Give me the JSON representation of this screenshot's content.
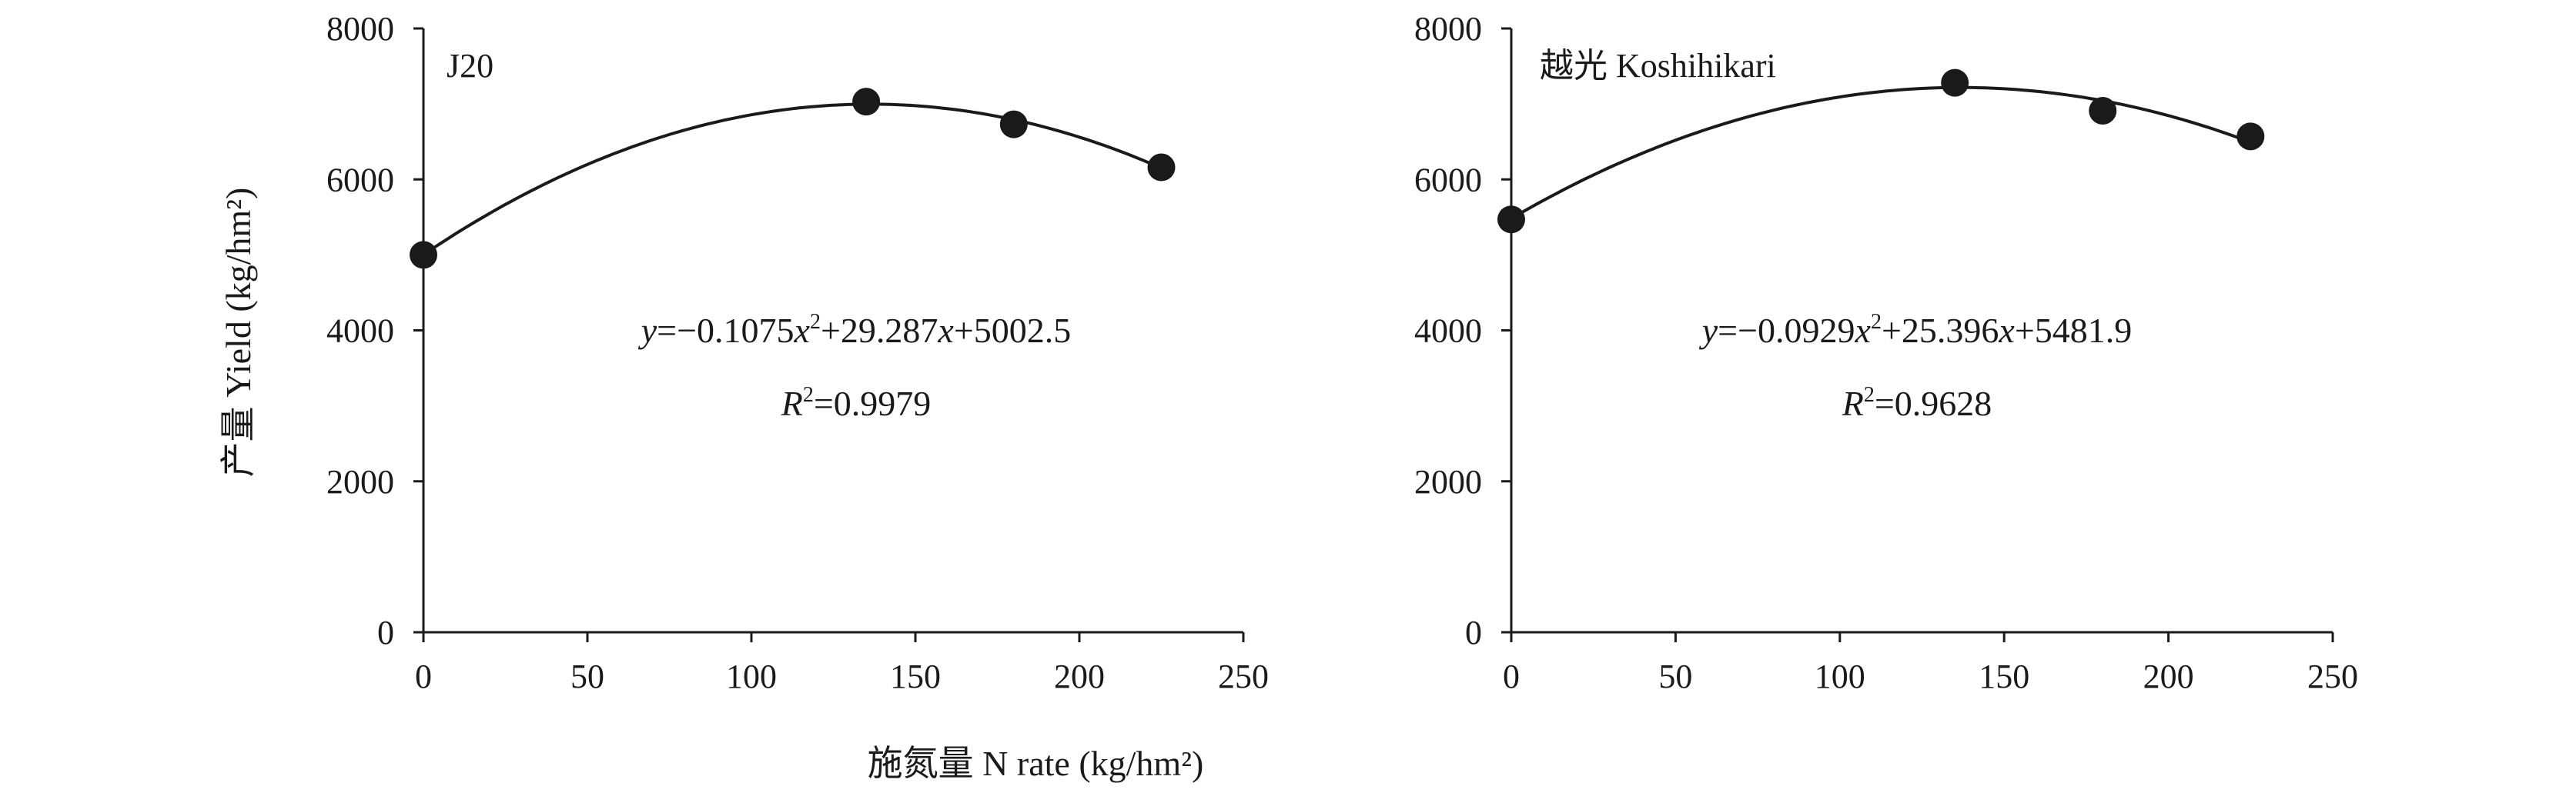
{
  "figure": {
    "y_axis_title": "产量 Yield (kg/hm²)",
    "x_axis_title": "施氮量 N rate (kg/hm²)"
  },
  "chart_data": [
    {
      "type": "scatter",
      "panel_label": "J20",
      "x": [
        0,
        135,
        180,
        225
      ],
      "y": [
        5000,
        7030,
        6730,
        6160
      ],
      "trendline": {
        "type": "polynomial",
        "a": -0.1075,
        "b": 29.287,
        "c": 5002.5
      },
      "equation": {
        "lhs": "y",
        "eq": "=−0.1075",
        "xv": "x",
        "sup": "2",
        "rest": "+29.287",
        "xv2": "x",
        "tail": "+5002.5"
      },
      "r2": {
        "r": "R",
        "sup": "2",
        "val": "=0.9979"
      },
      "xlim": [
        0,
        250
      ],
      "ylim": [
        0,
        8000
      ],
      "xticks": [
        "0",
        "50",
        "100",
        "150",
        "200",
        "250"
      ],
      "yticks": [
        "0",
        "2000",
        "4000",
        "6000",
        "8000"
      ],
      "grid": false
    },
    {
      "type": "scatter",
      "panel_label": "越光 Koshihikari",
      "x": [
        0,
        135,
        180,
        225
      ],
      "y": [
        5470,
        7280,
        6910,
        6570
      ],
      "trendline": {
        "type": "polynomial",
        "a": -0.0929,
        "b": 25.396,
        "c": 5481.9
      },
      "equation": {
        "lhs": "y",
        "eq": "=−0.0929",
        "xv": "x",
        "sup": "2",
        "rest": "+25.396",
        "xv2": "x",
        "tail": "+5481.9"
      },
      "r2": {
        "r": "R",
        "sup": "2",
        "val": "=0.9628"
      },
      "xlim": [
        0,
        250
      ],
      "ylim": [
        0,
        8000
      ],
      "xticks": [
        "0",
        "50",
        "100",
        "150",
        "200",
        "250"
      ],
      "yticks": [
        "0",
        "2000",
        "4000",
        "6000",
        "8000"
      ],
      "grid": false
    }
  ]
}
